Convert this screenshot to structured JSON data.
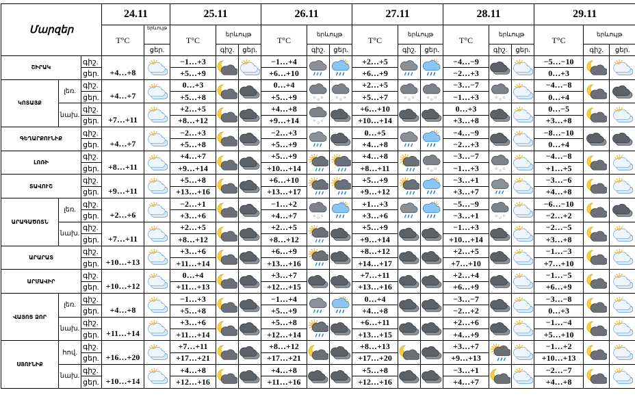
{
  "header": {
    "region_label": "Մարզեր",
    "dates": [
      "24.11",
      "25.11",
      "26.11",
      "27.11",
      "28.11",
      "29.11"
    ],
    "temp_label": "T°C",
    "phen_label": "երևույթ",
    "night": "գիշ.",
    "day": "ցեր."
  },
  "regions": [
    {
      "name": "ՇԻՐԱԿ",
      "parts": [
        {
          "d24": "+4…+8",
          "days": [
            [
              "−1…+3",
              "+5…+9"
            ],
            [
              "−1…+4",
              "+6…+10"
            ],
            [
              "+2…+5",
              "+6…+9"
            ],
            [
              "−4…−9",
              "−2…+3"
            ],
            [
              "−5…−10",
              "0…+3"
            ]
          ]
        }
      ]
    },
    {
      "name": "ԿՈՏԱՅՔ",
      "parts": [
        {
          "sub": "լեռ.",
          "d24": "+4…+7",
          "days": [
            [
              "0…+3",
              "+5…+8"
            ],
            [
              "0…+4",
              "+5…+9"
            ],
            [
              "+2…+5",
              "+5…+7"
            ],
            [
              "−3…−7",
              "−1…+3"
            ],
            [
              "−4…−8",
              "0…+4"
            ]
          ]
        },
        {
          "sub": "նախ.",
          "d24": "+7…+11",
          "days": [
            [
              "+2…+5",
              "+8…+12"
            ],
            [
              "+4…+8",
              "+9…+14"
            ],
            [
              "+6…+10",
              "+10…+14"
            ],
            [
              "0…+3",
              "+3…+8"
            ],
            [
              "0…−5",
              "+3…+8"
            ]
          ]
        }
      ]
    },
    {
      "name": "ԳԵՂԱՐՔՈՒՆԻՔ",
      "parts": [
        {
          "d24": "+4…+7",
          "days": [
            [
              "−2…+3",
              "+5…+8"
            ],
            [
              "−2…+3",
              "+5…+9"
            ],
            [
              "0…+5",
              "+4…+8"
            ],
            [
              "−4…−9",
              "−2…+3"
            ],
            [
              "−8…−10",
              "0…+4"
            ]
          ]
        }
      ]
    },
    {
      "name": "ԼՈՌԻ",
      "parts": [
        {
          "d24": "+8…+11",
          "days": [
            [
              "+4…+7",
              "+9…+14"
            ],
            [
              "+5…+9",
              "+10…+14"
            ],
            [
              "+4…+8",
              "+8…+11"
            ],
            [
              "−3…−7",
              "−1…+3"
            ],
            [
              "−4…−8",
              "+1…+5"
            ]
          ]
        }
      ]
    },
    {
      "name": "ՏԱՎՈՒՇ",
      "parts": [
        {
          "d24": "+9…+11",
          "days": [
            [
              "+5…+8",
              "+13…+16"
            ],
            [
              "+6…+10",
              "+13…+17"
            ],
            [
              "+5…+9",
              "+9…+12"
            ],
            [
              "−3…+1",
              "+3…+7"
            ],
            [
              "−3…−6",
              "+4…+8"
            ]
          ]
        }
      ]
    },
    {
      "name": "ԱՐԱԳԱԾՈՏՆ",
      "parts": [
        {
          "sub": "լեռ.",
          "d24": "+2…+6",
          "days": [
            [
              "−2…+1",
              "+3…+6"
            ],
            [
              "−1…+2",
              "+4…+7"
            ],
            [
              "+1…+3",
              "+3…+6"
            ],
            [
              "−5…−9",
              "−3…+1"
            ],
            [
              "−6…−10",
              "−2…+2"
            ]
          ]
        },
        {
          "sub": "նախ.",
          "d24": "+7…+11",
          "days": [
            [
              "+2…+5",
              "+8…+12"
            ],
            [
              "+2…+5",
              "+8…+12"
            ],
            [
              "+5…+9",
              "+9…+14"
            ],
            [
              "−1…+3",
              "+10…+14"
            ],
            [
              "−2…−5",
              "+3…+8"
            ]
          ]
        }
      ]
    },
    {
      "name": "ԱՐԱՐԱՏ",
      "parts": [
        {
          "d24": "+10…+13",
          "days": [
            [
              "+3…+6",
              "+11…+14"
            ],
            [
              "+6…+9",
              "+13…+16"
            ],
            [
              "+8…+12",
              "+14…+17"
            ],
            [
              "+2…+5",
              "+7…+10"
            ],
            [
              "−1…−3",
              "+7…+10"
            ]
          ]
        }
      ]
    },
    {
      "name": "ԱՐՄԱՎԻՐ",
      "parts": [
        {
          "d24": "+10…+12",
          "days": [
            [
              "0…+4",
              "+11…+13"
            ],
            [
              "+3…+7",
              "+12…+15"
            ],
            [
              "+7…+11",
              "+13…+16"
            ],
            [
              "+2…+4",
              "+6…+9"
            ],
            [
              "−1…−5",
              "+6…+9"
            ]
          ]
        }
      ]
    },
    {
      "name": "ՎԱՅՈՑ ՁՈՐ",
      "parts": [
        {
          "sub": "լեռ.",
          "d24": "+4…+8",
          "days": [
            [
              "−1…+3",
              "+5…+8"
            ],
            [
              "−1…+4",
              "+5…+9"
            ],
            [
              "0…+4",
              "+4…+8"
            ],
            [
              "−3…−7",
              "−2…+2"
            ],
            [
              "−3…−8",
              "0…+3"
            ]
          ]
        },
        {
          "sub": "նախ.",
          "d24": "+11…+14",
          "days": [
            [
              "+3…+6",
              "+11…+14"
            ],
            [
              "+5…+8",
              "+12…+14"
            ],
            [
              "+6…+11",
              "+13…+15"
            ],
            [
              "+2…+6",
              "+4…+9"
            ],
            [
              "−1…−4",
              "+5…+10"
            ]
          ]
        }
      ]
    },
    {
      "name": "ՍՅՈՒՆԻՔ",
      "parts": [
        {
          "sub": "հով.",
          "d24": "+16…+20",
          "days": [
            [
              "+7…+11",
              "+17…+21"
            ],
            [
              "+8…+12",
              "+17…+21"
            ],
            [
              "+8…+13",
              "+17…+20"
            ],
            [
              "+3…+7",
              "+9…+13"
            ],
            [
              "−1…+2",
              "+10…+13"
            ]
          ]
        },
        {
          "sub": "նախ.",
          "d24": "+10…+14",
          "days": [
            [
              "+4…+8",
              "+12…+16"
            ],
            [
              "+4…+8",
              "+11…+16"
            ],
            [
              "+5…+8",
              "+12…+16"
            ],
            [
              "−3…+1",
              "+4…+7"
            ],
            [
              "−2…−7",
              "+4…+8"
            ]
          ]
        }
      ]
    }
  ]
}
